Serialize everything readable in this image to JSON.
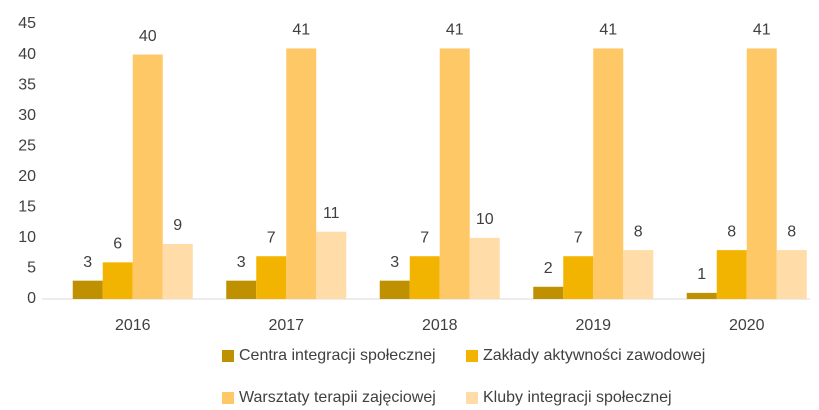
{
  "chart_data": {
    "type": "bar",
    "categories": [
      "2016",
      "2017",
      "2018",
      "2019",
      "2020"
    ],
    "series": [
      {
        "name": "Centra integracji społecznej",
        "color": "#bf9000",
        "values": [
          3,
          3,
          3,
          2,
          1
        ]
      },
      {
        "name": "Zakłady aktywności zawodowej",
        "color": "#f2b400",
        "values": [
          6,
          7,
          7,
          7,
          8
        ]
      },
      {
        "name": "Warsztaty terapii zajęciowej",
        "color": "#ffc866",
        "values": [
          40,
          41,
          41,
          41,
          41
        ]
      },
      {
        "name": "Kluby integracji społecznej",
        "color": "#ffdca8",
        "values": [
          9,
          11,
          10,
          8,
          8
        ]
      }
    ],
    "ylim": [
      0,
      45
    ],
    "yticks": [
      0,
      5,
      10,
      15,
      20,
      25,
      30,
      35,
      40,
      45
    ],
    "grid": false,
    "legend": "bottom"
  }
}
